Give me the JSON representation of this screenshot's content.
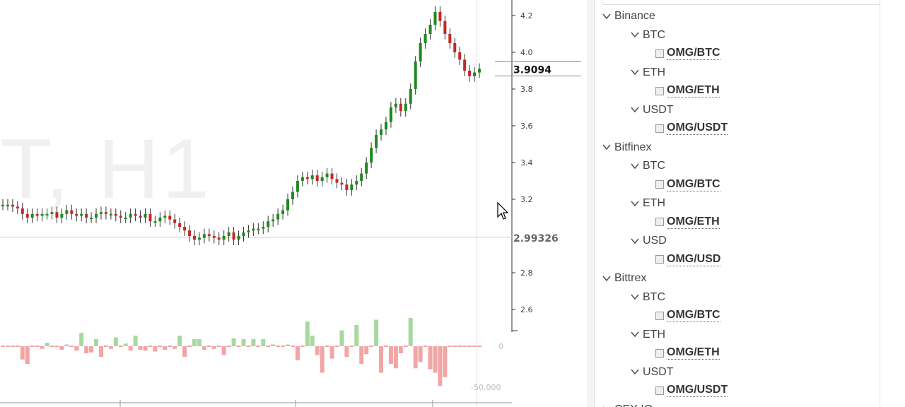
{
  "chart": {
    "watermark": "T, H1",
    "current_price": "3.9094",
    "crosshair_price": "2.99326",
    "axis_ticks": [
      "4.2",
      "4.0",
      "3.8",
      "3.6",
      "3.4",
      "3.2",
      "2.8",
      "2.6"
    ],
    "volume_ticks": [
      "0",
      "-50,000"
    ],
    "colors": {
      "up": "#1b8a1b",
      "down": "#c62828",
      "vol_up": "#a8d8a0",
      "vol_down": "#f2a5a5"
    }
  },
  "chart_data": {
    "type": "bar",
    "title": "",
    "ylim": [
      2.5,
      4.3
    ],
    "yticks": [
      4.2,
      4.0,
      3.8,
      3.6,
      3.4,
      3.2,
      2.8,
      2.6
    ],
    "last_price": 3.9094,
    "crosshair_price": 2.99326,
    "series": [
      {
        "values": [
          3.17,
          3.17,
          3.16,
          3.15,
          3.12,
          3.1,
          3.12,
          3.11,
          3.12,
          3.12,
          3.13,
          3.1,
          3.12,
          3.14,
          3.12,
          3.11,
          3.12,
          3.1,
          3.1,
          3.12,
          3.13,
          3.12,
          3.12,
          3.11,
          3.1,
          3.1,
          3.12,
          3.11,
          3.1,
          3.12,
          3.08,
          3.08,
          3.1,
          3.11,
          3.09,
          3.07,
          3.05,
          3.03,
          3.0,
          2.98,
          2.99,
          3.01,
          3.0,
          2.99,
          2.98,
          3.0,
          3.02,
          2.98,
          3.0,
          3.02,
          3.03,
          3.04,
          3.04,
          3.05,
          3.08,
          3.09,
          3.12,
          3.14,
          3.2,
          3.24,
          3.3,
          3.32,
          3.31,
          3.33,
          3.3,
          3.32,
          3.34,
          3.31,
          3.29,
          3.28,
          3.25,
          3.28,
          3.3,
          3.34,
          3.4,
          3.48,
          3.55,
          3.58,
          3.62,
          3.7,
          3.72,
          3.68,
          3.72,
          3.8,
          3.95,
          4.05,
          4.1,
          4.15,
          4.22,
          4.17,
          4.1,
          4.05,
          4.0,
          3.96,
          3.9,
          3.87,
          3.89,
          3.91
        ]
      },
      {
        "values": [
          0,
          0,
          0,
          0,
          -15000,
          -20000,
          0,
          0,
          -3000,
          4000,
          0,
          0,
          -4000,
          2000,
          0,
          -5000,
          15000,
          -8000,
          -7000,
          8000,
          -12000,
          0,
          -3000,
          10000,
          0,
          3000,
          -5000,
          12000,
          -4000,
          -5000,
          0,
          -6000,
          0,
          -4000,
          0,
          -3000,
          12000,
          -12000,
          0,
          8000,
          8000,
          -4000,
          0,
          -3000,
          0,
          -10000,
          0,
          9000,
          0,
          8000,
          0,
          8000,
          0,
          8000,
          0,
          2000,
          0,
          0,
          2000,
          0,
          -16000,
          0,
          28000,
          12000,
          -10000,
          -30000,
          0,
          -14000,
          0,
          18000,
          -12000,
          0,
          24000,
          -20000,
          -9000,
          0,
          30000,
          -30000,
          0,
          -20000,
          -25000,
          -8000,
          0,
          32000,
          -25000,
          -18000,
          0,
          -26000,
          -30000,
          -45000,
          -35000,
          0,
          0,
          0,
          0,
          0,
          0,
          0
        ]
      }
    ]
  },
  "tree": {
    "exchanges": [
      {
        "name": "Binance",
        "groups": [
          {
            "name": "BTC",
            "pairs": [
              "OMG/BTC"
            ]
          },
          {
            "name": "ETH",
            "pairs": [
              "OMG/ETH"
            ]
          },
          {
            "name": "USDT",
            "pairs": [
              "OMG/USDT"
            ]
          }
        ]
      },
      {
        "name": "Bitfinex",
        "groups": [
          {
            "name": "BTC",
            "pairs": [
              "OMG/BTC"
            ]
          },
          {
            "name": "ETH",
            "pairs": [
              "OMG/ETH"
            ]
          },
          {
            "name": "USD",
            "pairs": [
              "OMG/USD"
            ]
          }
        ]
      },
      {
        "name": "Bittrex",
        "groups": [
          {
            "name": "BTC",
            "pairs": [
              "OMG/BTC"
            ]
          },
          {
            "name": "ETH",
            "pairs": [
              "OMG/ETH"
            ]
          },
          {
            "name": "USDT",
            "pairs": [
              "OMG/USDT"
            ]
          }
        ]
      }
    ],
    "partial_next": "CEX.IO"
  }
}
